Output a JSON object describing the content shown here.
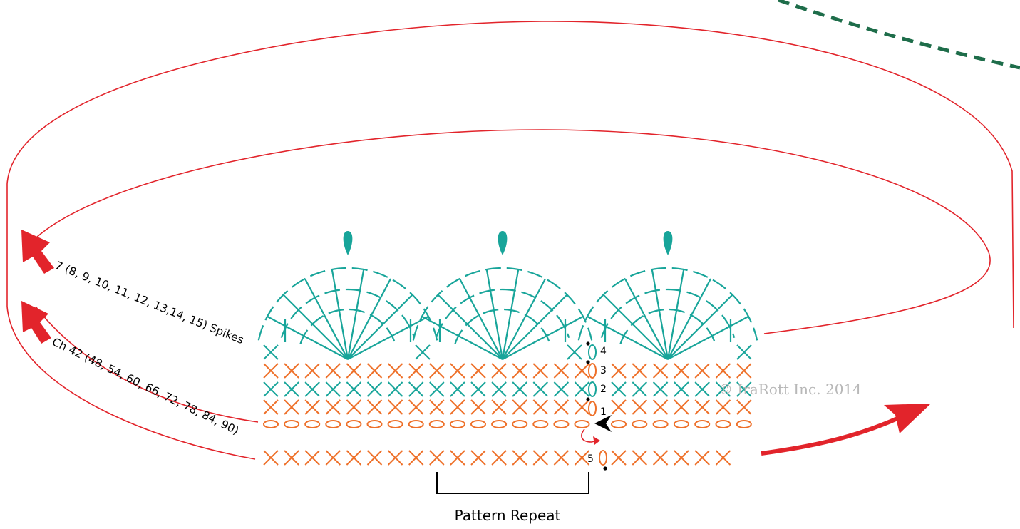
{
  "labels": {
    "spikes": "7 (8, 9, 10, 11, 12, 13,14, 15) Spikes",
    "chain": "Ch 42 (48, 54, 60, 66, 72, 78, 84, 90)",
    "pattern_repeat": "Pattern Repeat",
    "copyright": "© IraRott Inc. 2014"
  },
  "row_numbers": [
    "1",
    "2",
    "3",
    "4",
    "5"
  ],
  "colors": {
    "orange": "#ee7029",
    "teal": "#18a59a",
    "red": "#e2242b",
    "black": "#000000",
    "dashed_line": "#1e6d4a",
    "watermark": "#b8b8b8"
  },
  "icons": {
    "single_crochet": "x-stitch-icon",
    "chain": "oval-chain-icon",
    "spike": "teardrop-spike-icon",
    "fan": "fan-shell-icon",
    "arrow": "arrow-icon"
  }
}
